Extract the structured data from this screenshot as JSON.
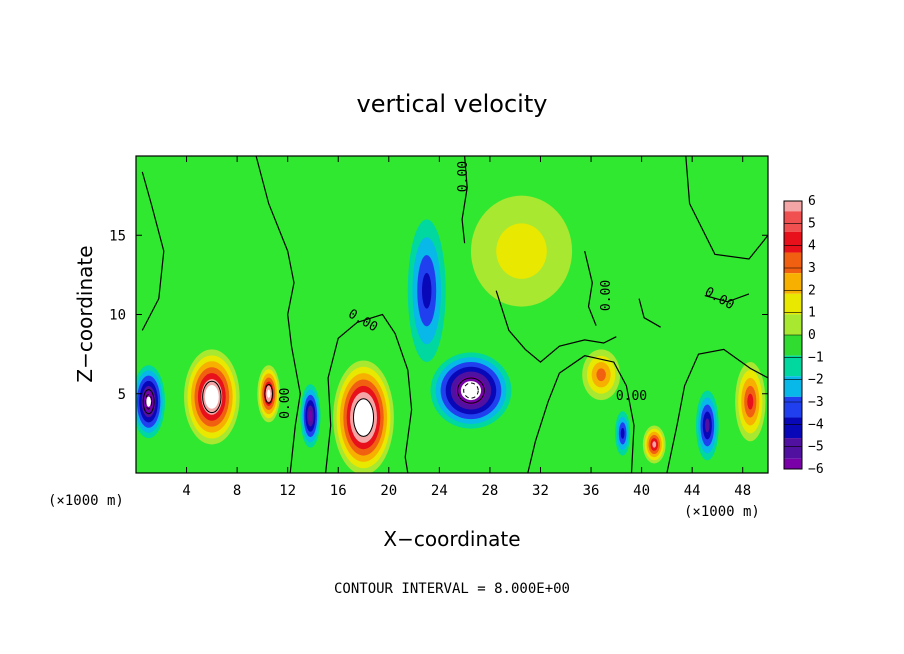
{
  "chart_data": {
    "type": "heatmap",
    "title": "vertical velocity",
    "xlabel": "X−coordinate",
    "ylabel": "Z−coordinate",
    "x_unit_left": "(×1000 m)",
    "x_unit_right": "(×1000 m)",
    "xlim": [
      0,
      50
    ],
    "ylim": [
      0,
      20
    ],
    "x_ticks": [
      4,
      8,
      12,
      16,
      20,
      24,
      28,
      32,
      36,
      40,
      44,
      48
    ],
    "x_tick_labels": [
      "4",
      "8",
      "12",
      "16",
      "20",
      "24",
      "28",
      "32",
      "36",
      "40",
      "44",
      "48"
    ],
    "y_ticks": [
      5,
      10,
      15
    ],
    "y_tick_labels": [
      "5",
      "10",
      "15"
    ],
    "footer": "CONTOUR INTERVAL = 8.000E+00",
    "contour_label": "0.00",
    "colorbar": {
      "levels": [
        6,
        5,
        4,
        3,
        2,
        1,
        0,
        -1,
        -2,
        -3,
        -4,
        -5,
        -6
      ],
      "labels": [
        "6",
        "5",
        "4",
        "3",
        "2",
        "1",
        "0",
        "−1",
        "−2",
        "−3",
        "−4",
        "−5",
        "−6"
      ],
      "colors": [
        "#f4a6a6",
        "#f05050",
        "#e8101a",
        "#f06010",
        "#f8b000",
        "#e8e800",
        "#a8e830",
        "#30dc30",
        "#00d8a0",
        "#08b8e8",
        "#2040f0",
        "#0808b8",
        "#5010a0",
        "#7a00a8"
      ]
    },
    "background_color": "#30e830",
    "features": [
      {
        "kind": "updraft",
        "x": 1,
        "z": 4.5,
        "rx": 1.3,
        "rz": 2.3,
        "peak": -7
      },
      {
        "kind": "updraft",
        "x": 6,
        "z": 4.8,
        "rx": 2.2,
        "rz": 3.0,
        "peak": 8
      },
      {
        "kind": "updraft",
        "x": 10.5,
        "z": 5.0,
        "rx": 0.9,
        "rz": 1.8,
        "peak": 7
      },
      {
        "kind": "updraft",
        "x": 13.8,
        "z": 3.6,
        "rx": 0.8,
        "rz": 2.0,
        "peak": -6
      },
      {
        "kind": "updraft",
        "x": 18,
        "z": 3.5,
        "rx": 2.4,
        "rz": 3.6,
        "peak": 9
      },
      {
        "kind": "updraft",
        "x": 26.5,
        "z": 5.2,
        "rx": 3.2,
        "rz": 2.4,
        "peak": -8
      },
      {
        "kind": "updraft",
        "x": 23,
        "z": 11.5,
        "rx": 1.5,
        "rz": 4.5,
        "peak": -3.5
      },
      {
        "kind": "updraft",
        "x": 36.8,
        "z": 6.2,
        "rx": 1.5,
        "rz": 1.6,
        "peak": 3.5
      },
      {
        "kind": "updraft",
        "x": 41.0,
        "z": 1.8,
        "rx": 0.9,
        "rz": 1.2,
        "peak": 6
      },
      {
        "kind": "updraft",
        "x": 45.2,
        "z": 3.0,
        "rx": 0.9,
        "rz": 2.2,
        "peak": -5
      },
      {
        "kind": "updraft",
        "x": 48.6,
        "z": 4.5,
        "rx": 1.2,
        "rz": 2.5,
        "peak": 5
      },
      {
        "kind": "updraft",
        "x": 38.5,
        "z": 2.5,
        "rx": 0.6,
        "rz": 1.4,
        "peak": -4
      },
      {
        "kind": "updraft",
        "x": 30.5,
        "z": 14,
        "rx": 4.0,
        "rz": 3.5,
        "peak": 1.6
      }
    ]
  }
}
